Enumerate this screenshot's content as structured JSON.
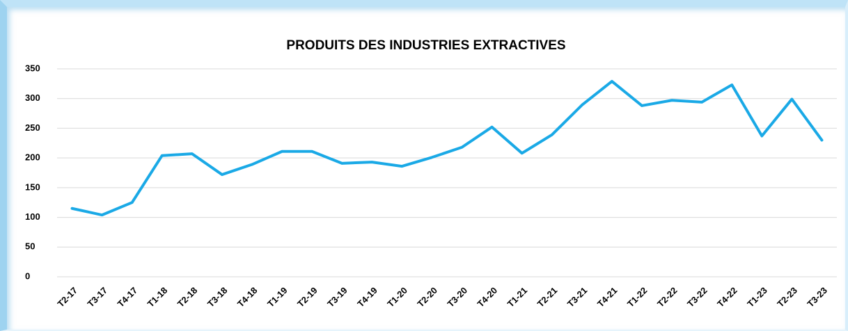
{
  "chart_data": {
    "type": "line",
    "title": "PRODUITS DES INDUSTRIES EXTRACTIVES",
    "categories": [
      "T2-17",
      "T3-17",
      "T4-17",
      "T1-18",
      "T2-18",
      "T3-18",
      "T4-18",
      "T1-19",
      "T2-19",
      "T3-19",
      "T4-19",
      "T1-20",
      "T2-20",
      "T3-20",
      "T4-20",
      "T1-21",
      "T2-21",
      "T3-21",
      "T4-21",
      "T1-22",
      "T2-22",
      "T3-22",
      "T4-22",
      "T1-23",
      "T2-23",
      "T3-23"
    ],
    "series": [
      {
        "color": "#1aa9e6",
        "values": [
          115,
          104,
          125,
          204,
          207,
          172,
          189,
          211,
          211,
          191,
          193,
          186,
          201,
          218,
          252,
          208,
          239,
          289,
          329,
          288,
          297,
          294,
          323,
          237,
          299,
          230
        ]
      }
    ],
    "ylim": [
      0,
      350
    ],
    "yticks": [
      0,
      50,
      100,
      150,
      200,
      250,
      300,
      350
    ],
    "grid": true
  }
}
